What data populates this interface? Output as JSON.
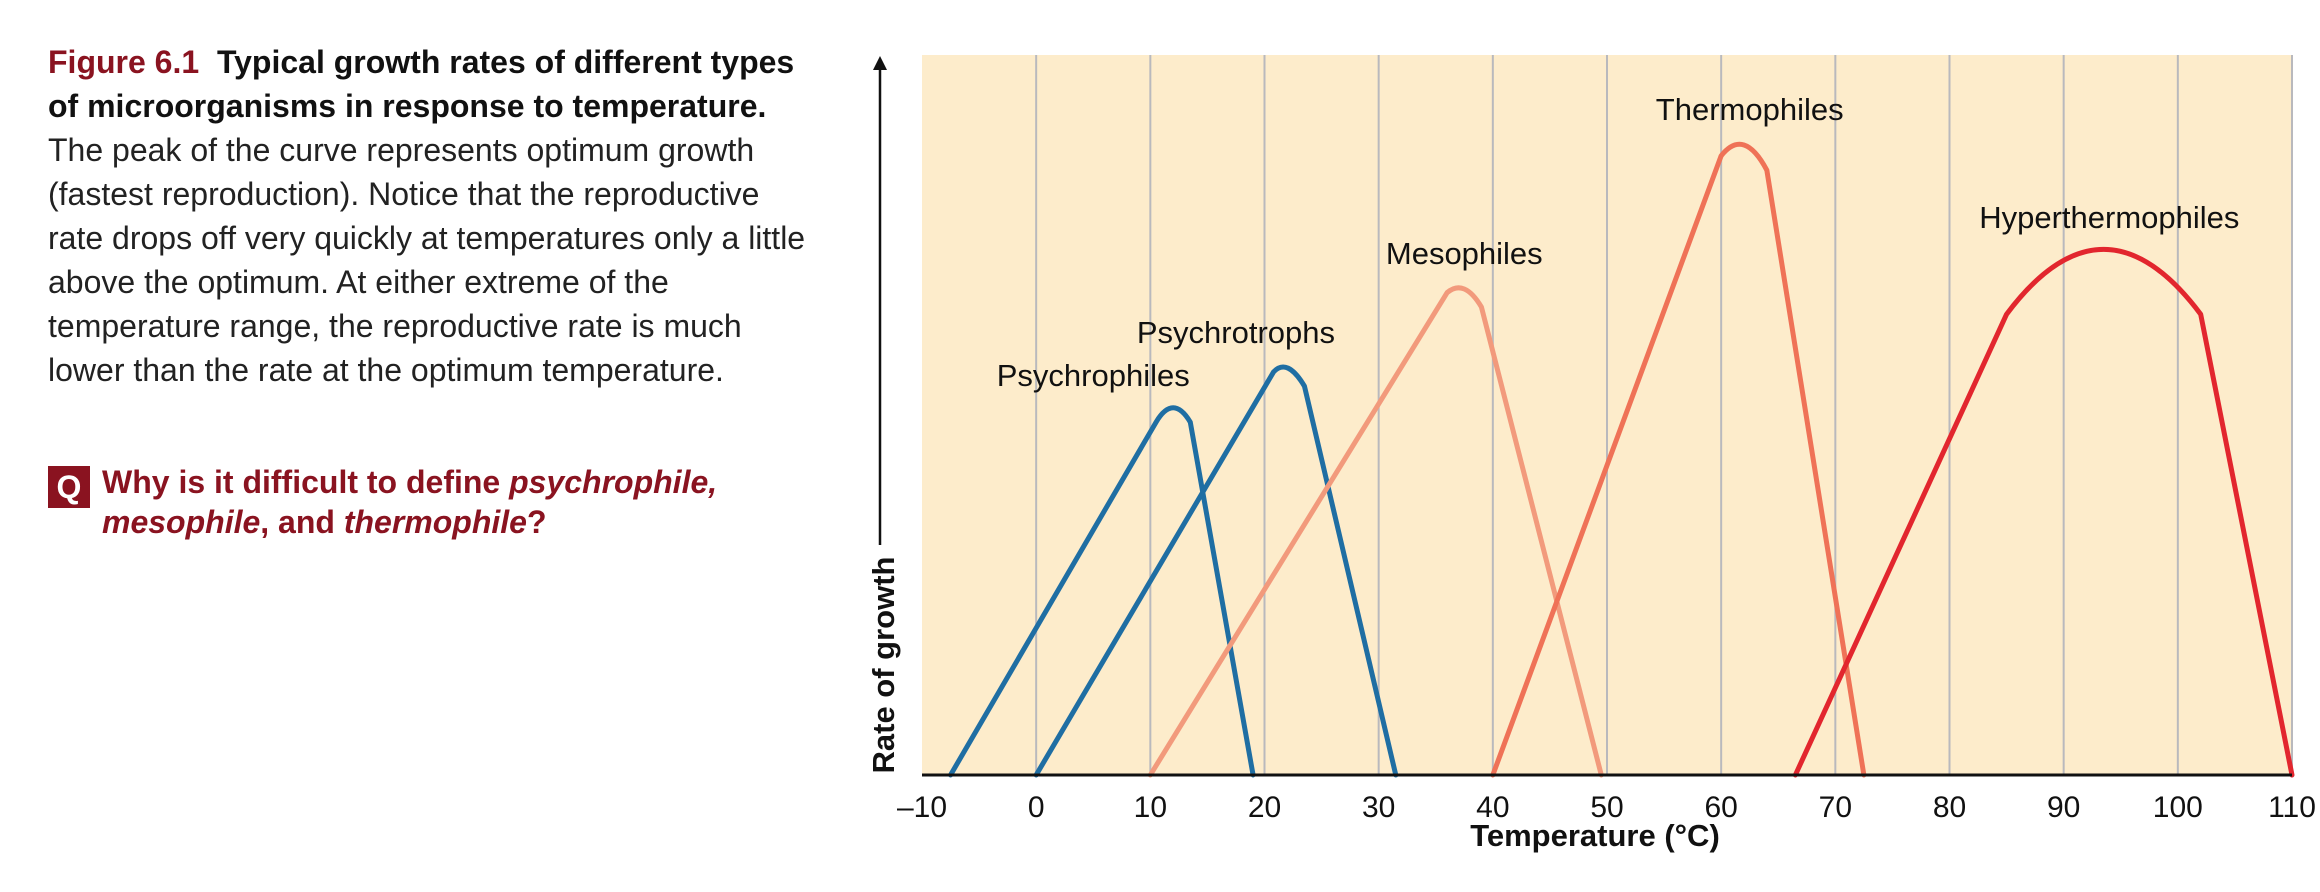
{
  "caption": {
    "figure_label": "Figure 6.1",
    "title": "Typical growth rates of different types of microorganisms in response to temperature.",
    "body": "The peak of the curve represents optimum growth (fastest reproduction). Notice that the reproductive rate drops off very quickly at temperatures only a little above the optimum. At either extreme of the temperature range, the reproductive rate is much lower than the rate at the optimum temperature."
  },
  "question": {
    "badge": "Q",
    "text_1": "Why is it difficult to define ",
    "term_1": "psychrophile,",
    "text_2": " ",
    "term_2": "mesophile",
    "text_3": ", and ",
    "term_3": "thermophile",
    "text_4": "?"
  },
  "colors": {
    "plot_background": "#fdeccb",
    "gridline": "#b9b9bd",
    "accent": "#8a1320",
    "psychrophiles": "#1f6ea3",
    "psychrotrophs": "#1f6ea3",
    "mesophiles": "#f29a7c",
    "thermophiles": "#ef7257",
    "hyperthermophiles": "#e2262e"
  },
  "chart_data": {
    "type": "line",
    "title": "",
    "xlabel": "Temperature (°C)",
    "ylabel": "Rate of growth",
    "xlim": [
      -10,
      110
    ],
    "ylim": [
      0,
      100
    ],
    "x_ticks": [
      -10,
      0,
      10,
      20,
      30,
      40,
      50,
      60,
      70,
      80,
      90,
      100,
      110
    ],
    "x_tick_labels": [
      "–10",
      "0",
      "10",
      "20",
      "30",
      "40",
      "50",
      "60",
      "70",
      "80",
      "90",
      "100",
      "110"
    ],
    "y_ticks_shown": false,
    "grid": "vertical",
    "series": [
      {
        "name": "Psychrophiles",
        "color_key": "psychrophiles",
        "points": [
          [
            -7.5,
            0
          ],
          [
            10.5,
            49
          ],
          [
            12,
            51
          ],
          [
            13.5,
            49
          ],
          [
            19,
            0
          ]
        ]
      },
      {
        "name": "Psychrotrophs",
        "color_key": "psychrotrophs",
        "points": [
          [
            0,
            0
          ],
          [
            20.8,
            56
          ],
          [
            22,
            57
          ],
          [
            23.5,
            54
          ],
          [
            31.5,
            0
          ]
        ]
      },
      {
        "name": "Mesophiles",
        "color_key": "mesophiles",
        "points": [
          [
            10,
            0
          ],
          [
            36,
            67
          ],
          [
            37.5,
            68
          ],
          [
            39,
            65
          ],
          [
            49.5,
            0
          ]
        ]
      },
      {
        "name": "Thermophiles",
        "color_key": "thermophiles",
        "points": [
          [
            40,
            0
          ],
          [
            60,
            86
          ],
          [
            62,
            88
          ],
          [
            64,
            84
          ],
          [
            72.5,
            0
          ]
        ]
      },
      {
        "name": "Hyperthermophiles",
        "color_key": "hyperthermophiles",
        "points": [
          [
            66.5,
            0
          ],
          [
            85,
            64
          ],
          [
            93.5,
            73
          ],
          [
            102,
            64
          ],
          [
            110,
            0
          ]
        ]
      }
    ],
    "labels": [
      {
        "text": "Psychrophiles",
        "x": 5,
        "y": 54
      },
      {
        "text": "Psychrotrophs",
        "x": 17.5,
        "y": 60
      },
      {
        "text": "Mesophiles",
        "x": 37.5,
        "y": 71
      },
      {
        "text": "Thermophiles",
        "x": 62.5,
        "y": 91
      },
      {
        "text": "Hyperthermophiles",
        "x": 94,
        "y": 76
      }
    ]
  }
}
